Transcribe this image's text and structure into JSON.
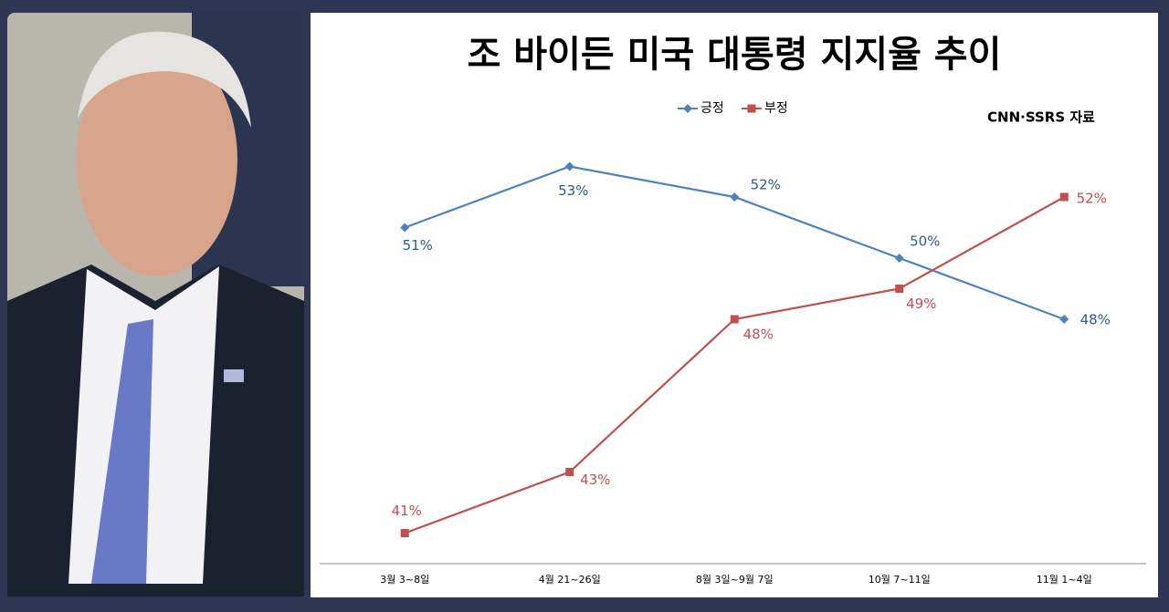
{
  "chart_data": {
    "type": "line",
    "title": "조 바이든 미국 대통령 지지율 추이",
    "annotation": "CNN·SSRS 자료",
    "categories": [
      "3월 3~8일",
      "4월 21~26일",
      "8월 3일~9월 7일",
      "10월 7~11일",
      "11월 1~4일"
    ],
    "series": [
      {
        "name": "긍정",
        "color": "#4f81bd",
        "marker": "diamond",
        "values": [
          51,
          53,
          52,
          50,
          48
        ],
        "value_labels": [
          "51%",
          "53%",
          "52%",
          "50%",
          "48%"
        ]
      },
      {
        "name": "부정",
        "color": "#c0504d",
        "marker": "square",
        "values": [
          41,
          43,
          48,
          49,
          52
        ],
        "value_labels": [
          "41%",
          "43%",
          "48%",
          "49%",
          "52%"
        ]
      }
    ],
    "ylim": [
      40,
      55
    ],
    "legend": "top"
  }
}
